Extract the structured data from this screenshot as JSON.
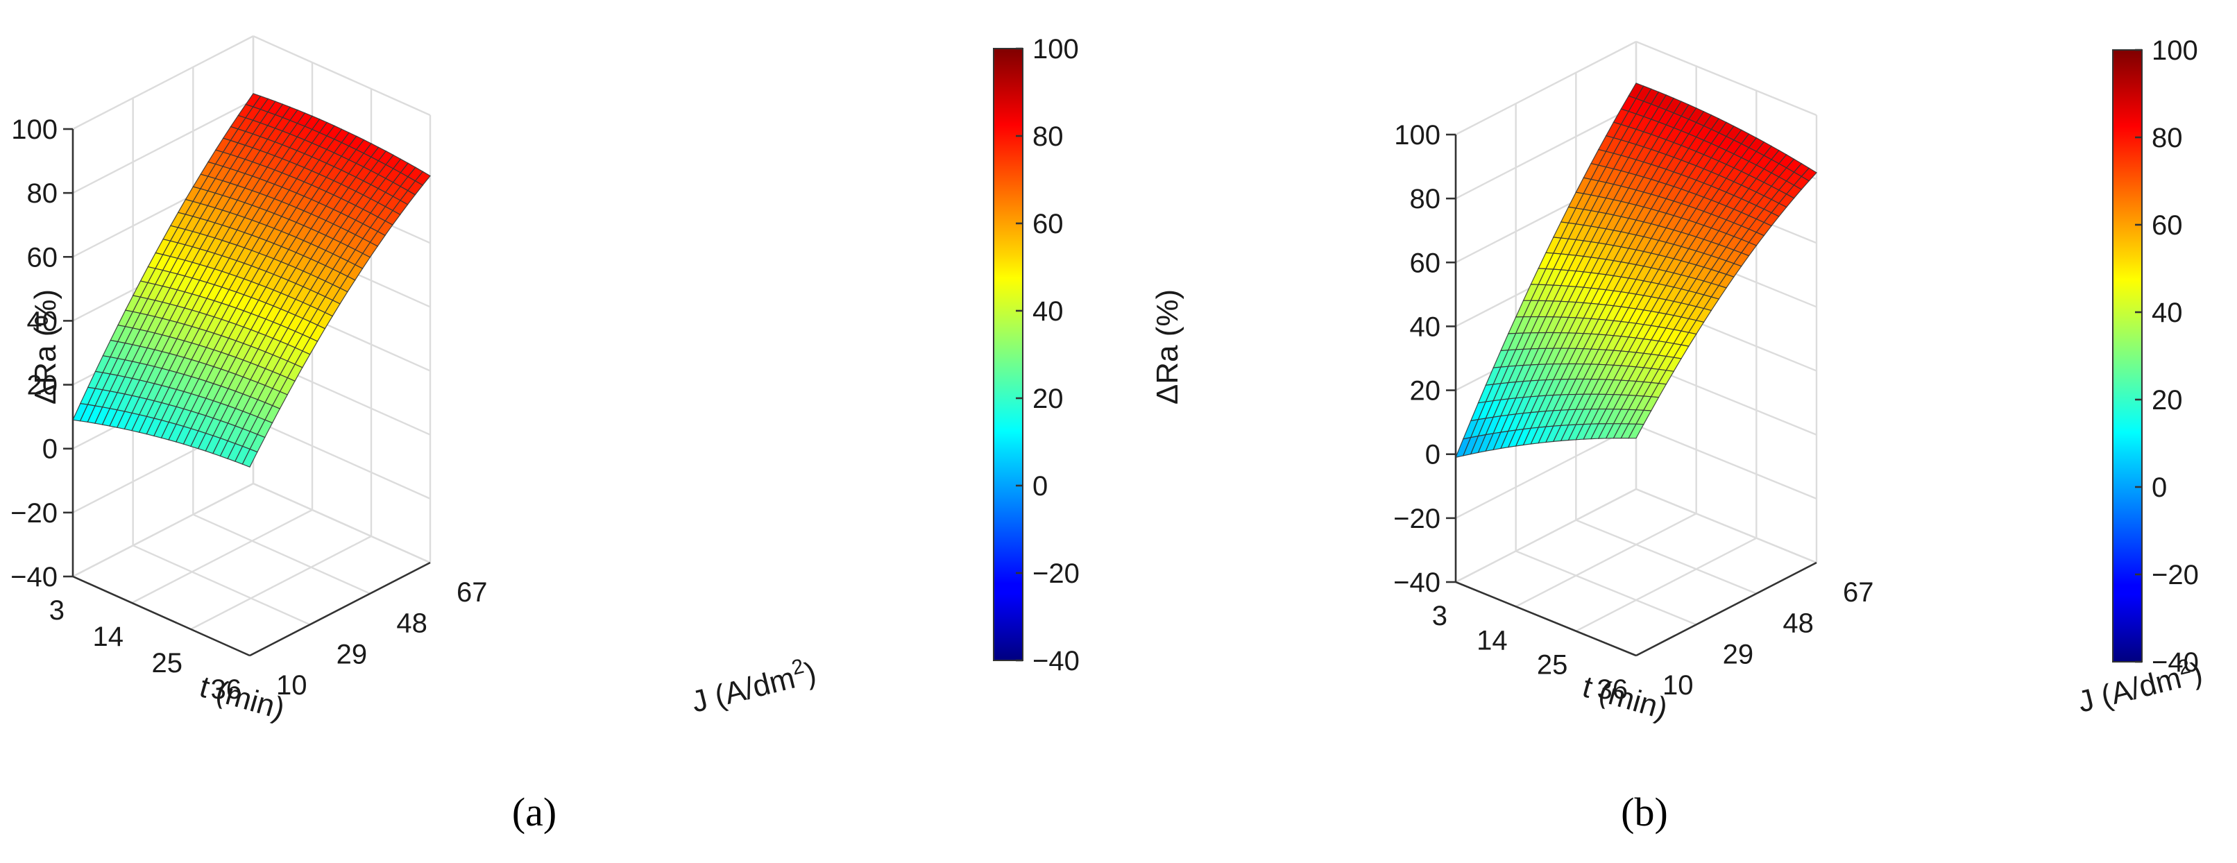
{
  "chart_data": [
    {
      "type": "surface3d",
      "panel_label": "(a)",
      "zlabel": "ΔRa (%)",
      "xlabel": "t (min)",
      "ylabel_main": "J (A/dm",
      "ylabel_sup": "2",
      "ylabel_close": ")",
      "x_range": [
        3,
        36
      ],
      "y_range": [
        10,
        67
      ],
      "zlim": [
        -40,
        100
      ],
      "x_ticks": [
        3,
        14,
        25,
        36
      ],
      "y_ticks": [
        10,
        29,
        48,
        67
      ],
      "z_ticks": [
        -40,
        -20,
        0,
        20,
        40,
        60,
        80,
        100
      ],
      "grid_resolution": 24,
      "corner_values": {
        "t3_J10": 9,
        "t36_J10": 19,
        "t36_J67": 81,
        "t3_J67": 82
      },
      "model": "quadratic response surface",
      "colorbar": {
        "colormap": "jet",
        "range": [
          -40,
          100
        ],
        "ticks": [
          -40,
          -20,
          0,
          20,
          40,
          60,
          80,
          100
        ]
      }
    },
    {
      "type": "surface3d",
      "panel_label": "(b)",
      "zlabel": "ΔRa (%)",
      "xlabel": "t (min)",
      "ylabel_main": "J (A/dm",
      "ylabel_sup": "2",
      "ylabel_close": ")",
      "x_range": [
        3,
        36
      ],
      "y_range": [
        10,
        67
      ],
      "zlim": [
        -40,
        100
      ],
      "x_ticks": [
        3,
        14,
        25,
        36
      ],
      "y_ticks": [
        10,
        29,
        48,
        67
      ],
      "z_ticks": [
        -40,
        -20,
        0,
        20,
        40,
        60,
        80,
        100
      ],
      "grid_resolution": 24,
      "corner_values": {
        "t3_J10": -1,
        "t36_J10": 28,
        "t36_J67": 82,
        "t3_J67": 87
      },
      "model": "quadratic response surface",
      "colorbar": {
        "colormap": "jet",
        "range": [
          -40,
          100
        ],
        "ticks": [
          -40,
          -20,
          0,
          20,
          40,
          60,
          80,
          100
        ]
      }
    }
  ]
}
